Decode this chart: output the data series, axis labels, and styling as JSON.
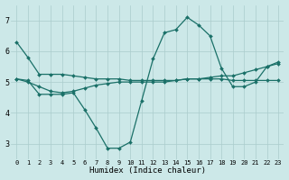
{
  "bg_color": "#cce8e8",
  "grid_color": "#aacccc",
  "line_color": "#1a7068",
  "xlabel": "Humidex (Indice chaleur)",
  "xlim": [
    -0.5,
    23.5
  ],
  "ylim": [
    2.5,
    7.5
  ],
  "yticks": [
    3,
    4,
    5,
    6,
    7
  ],
  "xticks": [
    0,
    1,
    2,
    3,
    4,
    5,
    6,
    7,
    8,
    9,
    10,
    11,
    12,
    13,
    14,
    15,
    16,
    17,
    18,
    19,
    20,
    21,
    22,
    23
  ],
  "lines": [
    {
      "x": [
        0,
        1,
        2,
        3,
        4,
        5,
        6,
        7,
        8,
        9,
        10,
        11,
        12,
        13,
        14,
        15,
        16,
        17,
        18,
        19,
        20,
        21,
        22,
        23
      ],
      "y": [
        6.3,
        5.8,
        5.25,
        5.25,
        5.25,
        5.2,
        5.15,
        5.1,
        5.1,
        5.1,
        5.05,
        5.05,
        5.05,
        5.05,
        5.05,
        5.1,
        5.1,
        5.1,
        5.1,
        5.05,
        5.05,
        5.05,
        5.05,
        5.05
      ]
    },
    {
      "x": [
        0,
        1,
        2,
        3,
        4,
        5,
        6,
        7,
        8,
        9,
        10,
        11,
        12,
        13,
        14,
        15,
        16,
        17,
        18,
        19,
        20,
        21,
        22,
        23
      ],
      "y": [
        5.1,
        5.05,
        4.6,
        4.6,
        4.6,
        4.65,
        4.1,
        3.5,
        2.85,
        2.85,
        3.05,
        4.4,
        5.75,
        6.6,
        6.7,
        7.1,
        6.85,
        6.5,
        5.45,
        4.85,
        4.85,
        5.0,
        5.5,
        5.65
      ]
    },
    {
      "x": [
        0,
        1,
        2,
        3,
        4,
        5,
        6,
        7,
        8,
        9,
        10,
        11,
        12,
        13,
        14,
        15,
        16,
        17,
        18,
        19,
        20,
        21,
        22,
        23
      ],
      "y": [
        5.1,
        5.0,
        4.85,
        4.7,
        4.65,
        4.7,
        4.8,
        4.9,
        4.95,
        5.0,
        5.0,
        5.0,
        5.0,
        5.0,
        5.05,
        5.1,
        5.1,
        5.15,
        5.2,
        5.2,
        5.3,
        5.4,
        5.5,
        5.6
      ]
    }
  ]
}
